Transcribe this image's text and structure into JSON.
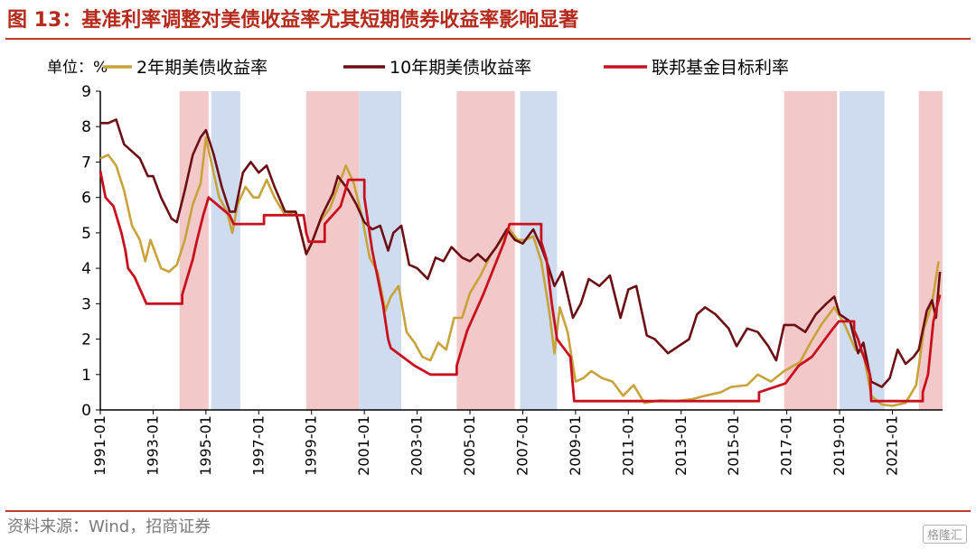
{
  "header": {
    "title": "图 13：基准利率调整对美债收益率尤其短期债券收益率影响显著"
  },
  "footer": {
    "source": "资料来源：Wind，招商证券",
    "watermark": "格隆汇"
  },
  "colors": {
    "title_red": "#b52a1c",
    "tightening_band": "#f2c8c8",
    "easing_band": "#cfdcf0",
    "series_2y": "#c8a23a",
    "series_10y": "#6b0f14",
    "series_ffr": "#c8101e"
  },
  "chart_data": {
    "type": "line",
    "unit_label": "单位：%",
    "ylim": [
      0,
      9
    ],
    "yticks": [
      "0",
      "1",
      "2",
      "3",
      "4",
      "5",
      "6",
      "7",
      "8",
      "9"
    ],
    "xlim": [
      1991.0,
      2022.9
    ],
    "xticks": [
      "1991-01",
      "1993-01",
      "1995-01",
      "1997-01",
      "1999-01",
      "2001-01",
      "2003-01",
      "2005-01",
      "2007-01",
      "2009-01",
      "2011-01",
      "2013-01",
      "2015-01",
      "2017-01",
      "2019-01",
      "2021-01"
    ],
    "grid": false,
    "legend_position": "top",
    "shaded_periods": [
      {
        "kind": "tightening",
        "start": 1994.0,
        "end": 1995.1
      },
      {
        "kind": "easing",
        "start": 1995.2,
        "end": 1996.3
      },
      {
        "kind": "tightening",
        "start": 1998.8,
        "end": 2000.8
      },
      {
        "kind": "easing",
        "start": 2000.8,
        "end": 2002.4
      },
      {
        "kind": "tightening",
        "start": 2004.5,
        "end": 2006.7
      },
      {
        "kind": "easing",
        "start": 2006.9,
        "end": 2008.3
      },
      {
        "kind": "tightening",
        "start": 2016.9,
        "end": 2018.9
      },
      {
        "kind": "easing",
        "start": 2019.0,
        "end": 2020.7
      },
      {
        "kind": "tightening",
        "start": 2022.0,
        "end": 2023.4
      }
    ],
    "series": [
      {
        "name": "2年期美债收益率",
        "points": [
          [
            1991.0,
            7.1
          ],
          [
            1991.3,
            7.2
          ],
          [
            1991.6,
            6.9
          ],
          [
            1991.9,
            6.2
          ],
          [
            1992.2,
            5.2
          ],
          [
            1992.5,
            4.8
          ],
          [
            1992.7,
            4.2
          ],
          [
            1992.9,
            4.8
          ],
          [
            1993.1,
            4.4
          ],
          [
            1993.3,
            4.0
          ],
          [
            1993.6,
            3.9
          ],
          [
            1993.9,
            4.1
          ],
          [
            1994.2,
            4.8
          ],
          [
            1994.5,
            5.8
          ],
          [
            1994.8,
            6.4
          ],
          [
            1995.0,
            7.7
          ],
          [
            1995.2,
            7.0
          ],
          [
            1995.5,
            6.0
          ],
          [
            1995.8,
            5.6
          ],
          [
            1996.0,
            5.0
          ],
          [
            1996.2,
            5.8
          ],
          [
            1996.5,
            6.3
          ],
          [
            1996.8,
            6.0
          ],
          [
            1997.0,
            6.0
          ],
          [
            1997.3,
            6.5
          ],
          [
            1997.6,
            6.0
          ],
          [
            1998.0,
            5.5
          ],
          [
            1998.4,
            5.6
          ],
          [
            1998.8,
            4.4
          ],
          [
            1999.0,
            4.7
          ],
          [
            1999.3,
            5.3
          ],
          [
            1999.7,
            5.7
          ],
          [
            2000.0,
            6.3
          ],
          [
            2000.3,
            6.9
          ],
          [
            2000.6,
            6.4
          ],
          [
            2000.9,
            5.5
          ],
          [
            2001.2,
            4.3
          ],
          [
            2001.5,
            3.9
          ],
          [
            2001.8,
            2.8
          ],
          [
            2002.0,
            3.2
          ],
          [
            2002.3,
            3.5
          ],
          [
            2002.6,
            2.2
          ],
          [
            2002.9,
            1.9
          ],
          [
            2003.2,
            1.5
          ],
          [
            2003.5,
            1.4
          ],
          [
            2003.8,
            1.9
          ],
          [
            2004.1,
            1.7
          ],
          [
            2004.4,
            2.6
          ],
          [
            2004.7,
            2.6
          ],
          [
            2005.0,
            3.3
          ],
          [
            2005.4,
            3.8
          ],
          [
            2005.8,
            4.4
          ],
          [
            2006.2,
            4.8
          ],
          [
            2006.5,
            5.1
          ],
          [
            2006.8,
            4.8
          ],
          [
            2007.1,
            4.8
          ],
          [
            2007.4,
            4.9
          ],
          [
            2007.7,
            4.2
          ],
          [
            2008.0,
            2.8
          ],
          [
            2008.2,
            1.6
          ],
          [
            2008.4,
            2.9
          ],
          [
            2008.7,
            2.2
          ],
          [
            2009.0,
            0.8
          ],
          [
            2009.3,
            0.9
          ],
          [
            2009.6,
            1.1
          ],
          [
            2010.0,
            0.9
          ],
          [
            2010.4,
            0.8
          ],
          [
            2010.8,
            0.4
          ],
          [
            2011.2,
            0.7
          ],
          [
            2011.6,
            0.2
          ],
          [
            2012.2,
            0.27
          ],
          [
            2012.8,
            0.25
          ],
          [
            2013.4,
            0.3
          ],
          [
            2013.9,
            0.4
          ],
          [
            2014.5,
            0.5
          ],
          [
            2014.9,
            0.65
          ],
          [
            2015.5,
            0.7
          ],
          [
            2015.9,
            1.0
          ],
          [
            2016.4,
            0.8
          ],
          [
            2016.9,
            1.1
          ],
          [
            2017.5,
            1.35
          ],
          [
            2017.9,
            1.9
          ],
          [
            2018.3,
            2.4
          ],
          [
            2018.8,
            2.9
          ],
          [
            2019.2,
            2.4
          ],
          [
            2019.6,
            1.7
          ],
          [
            2019.9,
            1.6
          ],
          [
            2020.2,
            0.4
          ],
          [
            2020.6,
            0.15
          ],
          [
            2021.0,
            0.12
          ],
          [
            2021.5,
            0.2
          ],
          [
            2021.9,
            0.7
          ],
          [
            2022.2,
            2.3
          ],
          [
            2022.5,
            3.0
          ],
          [
            2022.75,
            4.2
          ]
        ]
      },
      {
        "name": "10年期美债收益率",
        "points": [
          [
            1991.0,
            8.1
          ],
          [
            1991.3,
            8.1
          ],
          [
            1991.6,
            8.2
          ],
          [
            1991.9,
            7.5
          ],
          [
            1992.2,
            7.3
          ],
          [
            1992.5,
            7.1
          ],
          [
            1992.8,
            6.6
          ],
          [
            1993.0,
            6.6
          ],
          [
            1993.3,
            6.0
          ],
          [
            1993.7,
            5.4
          ],
          [
            1993.9,
            5.3
          ],
          [
            1994.2,
            6.2
          ],
          [
            1994.5,
            7.2
          ],
          [
            1994.8,
            7.7
          ],
          [
            1995.0,
            7.9
          ],
          [
            1995.3,
            7.2
          ],
          [
            1995.6,
            6.3
          ],
          [
            1995.9,
            5.6
          ],
          [
            1996.1,
            5.6
          ],
          [
            1996.4,
            6.7
          ],
          [
            1996.7,
            7.0
          ],
          [
            1997.0,
            6.7
          ],
          [
            1997.3,
            6.9
          ],
          [
            1997.6,
            6.3
          ],
          [
            1998.0,
            5.6
          ],
          [
            1998.4,
            5.6
          ],
          [
            1998.8,
            4.4
          ],
          [
            1999.0,
            4.7
          ],
          [
            1999.4,
            5.5
          ],
          [
            1999.8,
            6.1
          ],
          [
            2000.0,
            6.6
          ],
          [
            2000.4,
            6.2
          ],
          [
            2000.7,
            5.8
          ],
          [
            2001.0,
            5.3
          ],
          [
            2001.3,
            5.1
          ],
          [
            2001.6,
            5.2
          ],
          [
            2001.9,
            4.5
          ],
          [
            2002.1,
            5.0
          ],
          [
            2002.4,
            5.2
          ],
          [
            2002.7,
            4.1
          ],
          [
            2003.0,
            4.0
          ],
          [
            2003.4,
            3.7
          ],
          [
            2003.7,
            4.3
          ],
          [
            2004.0,
            4.2
          ],
          [
            2004.3,
            4.6
          ],
          [
            2004.7,
            4.3
          ],
          [
            2005.0,
            4.2
          ],
          [
            2005.3,
            4.4
          ],
          [
            2005.6,
            4.2
          ],
          [
            2006.0,
            4.6
          ],
          [
            2006.4,
            5.1
          ],
          [
            2006.7,
            4.8
          ],
          [
            2007.0,
            4.7
          ],
          [
            2007.4,
            5.1
          ],
          [
            2007.7,
            4.6
          ],
          [
            2007.95,
            4.1
          ],
          [
            2008.2,
            3.5
          ],
          [
            2008.5,
            3.9
          ],
          [
            2008.9,
            2.6
          ],
          [
            2009.2,
            3.0
          ],
          [
            2009.5,
            3.7
          ],
          [
            2009.9,
            3.5
          ],
          [
            2010.3,
            3.8
          ],
          [
            2010.7,
            2.6
          ],
          [
            2011.0,
            3.4
          ],
          [
            2011.3,
            3.5
          ],
          [
            2011.7,
            2.1
          ],
          [
            2012.0,
            2.0
          ],
          [
            2012.5,
            1.6
          ],
          [
            2012.9,
            1.8
          ],
          [
            2013.3,
            2.0
          ],
          [
            2013.6,
            2.7
          ],
          [
            2013.9,
            2.9
          ],
          [
            2014.3,
            2.7
          ],
          [
            2014.8,
            2.3
          ],
          [
            2015.1,
            1.8
          ],
          [
            2015.5,
            2.3
          ],
          [
            2015.9,
            2.2
          ],
          [
            2016.3,
            1.8
          ],
          [
            2016.6,
            1.4
          ],
          [
            2016.9,
            2.4
          ],
          [
            2017.3,
            2.4
          ],
          [
            2017.7,
            2.2
          ],
          [
            2018.1,
            2.7
          ],
          [
            2018.5,
            3.0
          ],
          [
            2018.8,
            3.2
          ],
          [
            2019.0,
            2.7
          ],
          [
            2019.4,
            2.5
          ],
          [
            2019.7,
            1.6
          ],
          [
            2019.9,
            1.9
          ],
          [
            2020.2,
            0.8
          ],
          [
            2020.6,
            0.65
          ],
          [
            2020.9,
            0.9
          ],
          [
            2021.2,
            1.7
          ],
          [
            2021.5,
            1.3
          ],
          [
            2021.8,
            1.5
          ],
          [
            2022.0,
            1.7
          ],
          [
            2022.3,
            2.8
          ],
          [
            2022.5,
            3.1
          ],
          [
            2022.65,
            2.6
          ],
          [
            2022.8,
            3.9
          ]
        ]
      },
      {
        "name": "联邦基金目标利率",
        "points": [
          [
            1991.0,
            6.75
          ],
          [
            1991.2,
            6.0
          ],
          [
            1991.5,
            5.75
          ],
          [
            1991.8,
            5.0
          ],
          [
            1991.95,
            4.5
          ],
          [
            1992.05,
            4.0
          ],
          [
            1992.3,
            3.75
          ],
          [
            1992.6,
            3.25
          ],
          [
            1992.75,
            3.0
          ],
          [
            1994.1,
            3.0
          ],
          [
            1994.1,
            3.25
          ],
          [
            1994.3,
            3.75
          ],
          [
            1994.5,
            4.25
          ],
          [
            1994.65,
            4.75
          ],
          [
            1994.9,
            5.5
          ],
          [
            1995.1,
            6.0
          ],
          [
            1995.5,
            5.75
          ],
          [
            1995.9,
            5.5
          ],
          [
            1996.05,
            5.25
          ],
          [
            1997.2,
            5.25
          ],
          [
            1997.2,
            5.5
          ],
          [
            1998.7,
            5.5
          ],
          [
            1998.8,
            5.0
          ],
          [
            1998.9,
            4.75
          ],
          [
            1999.5,
            4.75
          ],
          [
            1999.5,
            5.25
          ],
          [
            1999.8,
            5.5
          ],
          [
            2000.1,
            5.75
          ],
          [
            2000.4,
            6.5
          ],
          [
            2001.0,
            6.5
          ],
          [
            2001.0,
            6.0
          ],
          [
            2001.1,
            5.5
          ],
          [
            2001.3,
            4.5
          ],
          [
            2001.5,
            3.75
          ],
          [
            2001.7,
            3.0
          ],
          [
            2001.9,
            2.0
          ],
          [
            2002.0,
            1.75
          ],
          [
            2002.9,
            1.25
          ],
          [
            2003.5,
            1.0
          ],
          [
            2004.5,
            1.0
          ],
          [
            2004.5,
            1.25
          ],
          [
            2004.9,
            2.25
          ],
          [
            2005.5,
            3.25
          ],
          [
            2005.9,
            4.0
          ],
          [
            2006.3,
            4.75
          ],
          [
            2006.5,
            5.25
          ],
          [
            2007.7,
            5.25
          ],
          [
            2007.7,
            4.75
          ],
          [
            2007.9,
            4.25
          ],
          [
            2008.1,
            3.0
          ],
          [
            2008.3,
            2.0
          ],
          [
            2008.8,
            1.5
          ],
          [
            2008.95,
            0.25
          ],
          [
            2015.95,
            0.25
          ],
          [
            2015.95,
            0.5
          ],
          [
            2016.95,
            0.75
          ],
          [
            2017.2,
            1.0
          ],
          [
            2017.45,
            1.25
          ],
          [
            2017.95,
            1.5
          ],
          [
            2018.2,
            1.75
          ],
          [
            2018.45,
            2.0
          ],
          [
            2018.7,
            2.25
          ],
          [
            2018.97,
            2.5
          ],
          [
            2019.55,
            2.5
          ],
          [
            2019.55,
            2.25
          ],
          [
            2019.7,
            2.0
          ],
          [
            2019.8,
            1.75
          ],
          [
            2020.15,
            1.0
          ],
          [
            2020.2,
            0.25
          ],
          [
            2022.15,
            0.25
          ],
          [
            2022.15,
            0.5
          ],
          [
            2022.35,
            1.0
          ],
          [
            2022.45,
            1.75
          ],
          [
            2022.55,
            2.5
          ],
          [
            2022.8,
            3.25
          ]
        ]
      }
    ]
  }
}
